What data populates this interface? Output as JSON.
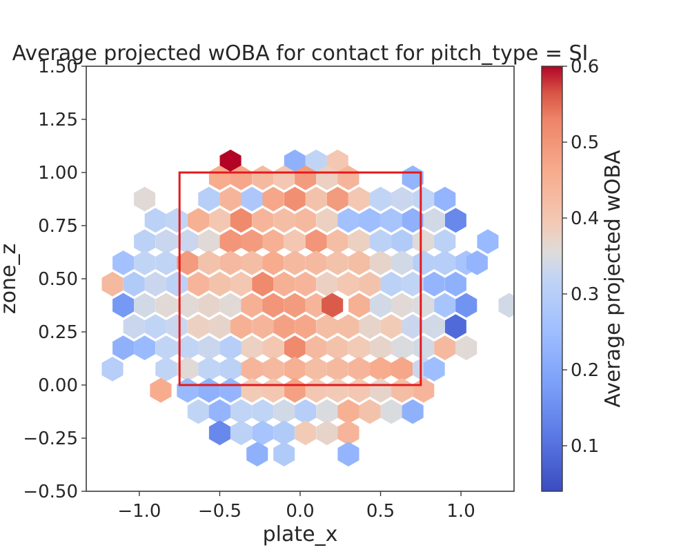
{
  "chart_data": {
    "type": "heatmap",
    "subtype": "hexbin",
    "title": "Average projected wOBA for contact for pitch_type = SI",
    "xlabel": "plate_x",
    "ylabel": "zone_z",
    "xlim": [
      -1.33,
      1.33
    ],
    "ylim": [
      -0.5,
      1.5
    ],
    "x_ticks": [
      -1.0,
      -0.5,
      0.0,
      0.5,
      1.0
    ],
    "x_tick_labels": [
      "−1.0",
      "−0.5",
      "0.0",
      "0.5",
      "1.0"
    ],
    "y_ticks": [
      -0.5,
      -0.25,
      0.0,
      0.25,
      0.5,
      0.75,
      1.0,
      1.25,
      1.5
    ],
    "y_tick_labels": [
      "−0.50",
      "−0.25",
      "0.00",
      "0.25",
      "0.50",
      "0.75",
      "1.00",
      "1.25",
      "1.50"
    ],
    "colorbar": {
      "label": "Average projected wOBA",
      "colormap": "coolwarm",
      "vmin": 0.04,
      "vmax": 0.6,
      "ticks": [
        0.1,
        0.2,
        0.3,
        0.4,
        0.5,
        0.6
      ],
      "tick_labels": [
        "0.1",
        "0.2",
        "0.3",
        "0.4",
        "0.5",
        "0.6"
      ]
    },
    "strike_zone": {
      "x": [
        -0.75,
        0.75
      ],
      "z": [
        0.0,
        1.0
      ],
      "color": "#e31a1c"
    },
    "hex_x_spacing": 0.1333,
    "hex_z_spacing": 0.25,
    "hexbins": [
      {
        "x": -0.433,
        "z": 1.05,
        "v": 0.6
      },
      {
        "x": -0.033,
        "z": 1.05,
        "v": 0.22
      },
      {
        "x": 0.1,
        "z": 1.05,
        "v": 0.32
      },
      {
        "x": 0.233,
        "z": 1.05,
        "v": 0.4
      },
      {
        "x": -0.5,
        "z": 0.975,
        "v": 0.46
      },
      {
        "x": -0.367,
        "z": 0.975,
        "v": 0.47
      },
      {
        "x": -0.233,
        "z": 0.975,
        "v": 0.43
      },
      {
        "x": -0.1,
        "z": 0.975,
        "v": 0.4
      },
      {
        "x": 0.033,
        "z": 0.975,
        "v": 0.49
      },
      {
        "x": 0.167,
        "z": 0.975,
        "v": 0.38
      },
      {
        "x": 0.3,
        "z": 0.975,
        "v": 0.44
      },
      {
        "x": 0.7,
        "z": 0.975,
        "v": 0.23
      },
      {
        "x": -0.967,
        "z": 0.875,
        "v": 0.36
      },
      {
        "x": -0.567,
        "z": 0.875,
        "v": 0.3
      },
      {
        "x": -0.433,
        "z": 0.875,
        "v": 0.44
      },
      {
        "x": -0.3,
        "z": 0.875,
        "v": 0.28
      },
      {
        "x": -0.167,
        "z": 0.875,
        "v": 0.47
      },
      {
        "x": -0.033,
        "z": 0.875,
        "v": 0.51
      },
      {
        "x": 0.1,
        "z": 0.875,
        "v": 0.41
      },
      {
        "x": 0.233,
        "z": 0.875,
        "v": 0.49
      },
      {
        "x": 0.367,
        "z": 0.875,
        "v": 0.4
      },
      {
        "x": 0.5,
        "z": 0.875,
        "v": 0.32
      },
      {
        "x": 0.633,
        "z": 0.875,
        "v": 0.33
      },
      {
        "x": 0.767,
        "z": 0.875,
        "v": 0.32
      },
      {
        "x": 0.9,
        "z": 0.875,
        "v": 0.23
      },
      {
        "x": -0.9,
        "z": 0.775,
        "v": 0.31
      },
      {
        "x": -0.767,
        "z": 0.775,
        "v": 0.32
      },
      {
        "x": -0.633,
        "z": 0.775,
        "v": 0.45
      },
      {
        "x": -0.5,
        "z": 0.775,
        "v": 0.4
      },
      {
        "x": -0.367,
        "z": 0.775,
        "v": 0.52
      },
      {
        "x": -0.233,
        "z": 0.775,
        "v": 0.44
      },
      {
        "x": -0.1,
        "z": 0.775,
        "v": 0.42
      },
      {
        "x": 0.033,
        "z": 0.775,
        "v": 0.43
      },
      {
        "x": 0.167,
        "z": 0.775,
        "v": 0.38
      },
      {
        "x": 0.3,
        "z": 0.775,
        "v": 0.26
      },
      {
        "x": 0.433,
        "z": 0.775,
        "v": 0.25
      },
      {
        "x": 0.567,
        "z": 0.775,
        "v": 0.27
      },
      {
        "x": 0.7,
        "z": 0.775,
        "v": 0.22
      },
      {
        "x": 0.833,
        "z": 0.775,
        "v": 0.34
      },
      {
        "x": 0.967,
        "z": 0.775,
        "v": 0.14
      },
      {
        "x": -0.967,
        "z": 0.675,
        "v": 0.31
      },
      {
        "x": -0.833,
        "z": 0.675,
        "v": 0.33
      },
      {
        "x": -0.7,
        "z": 0.675,
        "v": 0.33
      },
      {
        "x": -0.567,
        "z": 0.675,
        "v": 0.36
      },
      {
        "x": -0.433,
        "z": 0.675,
        "v": 0.5
      },
      {
        "x": -0.3,
        "z": 0.675,
        "v": 0.49
      },
      {
        "x": -0.167,
        "z": 0.675,
        "v": 0.45
      },
      {
        "x": -0.033,
        "z": 0.675,
        "v": 0.4
      },
      {
        "x": 0.1,
        "z": 0.675,
        "v": 0.5
      },
      {
        "x": 0.233,
        "z": 0.675,
        "v": 0.42
      },
      {
        "x": 0.367,
        "z": 0.675,
        "v": 0.38
      },
      {
        "x": 0.5,
        "z": 0.675,
        "v": 0.31
      },
      {
        "x": 0.633,
        "z": 0.675,
        "v": 0.29
      },
      {
        "x": 0.767,
        "z": 0.675,
        "v": 0.36
      },
      {
        "x": 0.9,
        "z": 0.675,
        "v": 0.31
      },
      {
        "x": 1.167,
        "z": 0.675,
        "v": 0.24
      },
      {
        "x": -1.1,
        "z": 0.575,
        "v": 0.26
      },
      {
        "x": -0.967,
        "z": 0.575,
        "v": 0.32
      },
      {
        "x": -0.833,
        "z": 0.575,
        "v": 0.32
      },
      {
        "x": -0.7,
        "z": 0.575,
        "v": 0.49
      },
      {
        "x": -0.567,
        "z": 0.575,
        "v": 0.41
      },
      {
        "x": -0.433,
        "z": 0.575,
        "v": 0.43
      },
      {
        "x": -0.3,
        "z": 0.575,
        "v": 0.42
      },
      {
        "x": -0.167,
        "z": 0.575,
        "v": 0.46
      },
      {
        "x": -0.033,
        "z": 0.575,
        "v": 0.43
      },
      {
        "x": 0.1,
        "z": 0.575,
        "v": 0.43
      },
      {
        "x": 0.233,
        "z": 0.575,
        "v": 0.41
      },
      {
        "x": 0.367,
        "z": 0.575,
        "v": 0.42
      },
      {
        "x": 0.5,
        "z": 0.575,
        "v": 0.37
      },
      {
        "x": 0.633,
        "z": 0.575,
        "v": 0.34
      },
      {
        "x": 0.767,
        "z": 0.575,
        "v": 0.3
      },
      {
        "x": 0.9,
        "z": 0.575,
        "v": 0.3
      },
      {
        "x": 1.033,
        "z": 0.575,
        "v": 0.27
      },
      {
        "x": 1.1,
        "z": 0.575,
        "v": 0.23
      },
      {
        "x": -1.167,
        "z": 0.475,
        "v": 0.43
      },
      {
        "x": -1.033,
        "z": 0.475,
        "v": 0.29
      },
      {
        "x": -0.9,
        "z": 0.475,
        "v": 0.33
      },
      {
        "x": -0.767,
        "z": 0.475,
        "v": 0.31
      },
      {
        "x": -0.633,
        "z": 0.475,
        "v": 0.44
      },
      {
        "x": -0.5,
        "z": 0.475,
        "v": 0.41
      },
      {
        "x": -0.367,
        "z": 0.475,
        "v": 0.4
      },
      {
        "x": -0.233,
        "z": 0.475,
        "v": 0.52
      },
      {
        "x": -0.1,
        "z": 0.475,
        "v": 0.45
      },
      {
        "x": 0.033,
        "z": 0.475,
        "v": 0.44
      },
      {
        "x": 0.167,
        "z": 0.475,
        "v": 0.38
      },
      {
        "x": 0.3,
        "z": 0.475,
        "v": 0.4
      },
      {
        "x": 0.433,
        "z": 0.475,
        "v": 0.41
      },
      {
        "x": 0.567,
        "z": 0.475,
        "v": 0.31
      },
      {
        "x": 0.7,
        "z": 0.475,
        "v": 0.32
      },
      {
        "x": 0.833,
        "z": 0.475,
        "v": 0.23
      },
      {
        "x": 0.967,
        "z": 0.475,
        "v": 0.22
      },
      {
        "x": -1.1,
        "z": 0.375,
        "v": 0.17
      },
      {
        "x": -0.967,
        "z": 0.375,
        "v": 0.34
      },
      {
        "x": -0.833,
        "z": 0.375,
        "v": 0.36
      },
      {
        "x": -0.7,
        "z": 0.375,
        "v": 0.36
      },
      {
        "x": -0.567,
        "z": 0.375,
        "v": 0.37
      },
      {
        "x": -0.433,
        "z": 0.375,
        "v": 0.36
      },
      {
        "x": -0.3,
        "z": 0.375,
        "v": 0.45
      },
      {
        "x": -0.167,
        "z": 0.375,
        "v": 0.5
      },
      {
        "x": -0.033,
        "z": 0.375,
        "v": 0.49
      },
      {
        "x": 0.1,
        "z": 0.375,
        "v": 0.44
      },
      {
        "x": 0.2,
        "z": 0.375,
        "v": 0.56
      },
      {
        "x": 0.367,
        "z": 0.375,
        "v": 0.45
      },
      {
        "x": 0.5,
        "z": 0.375,
        "v": 0.34
      },
      {
        "x": 0.633,
        "z": 0.375,
        "v": 0.36
      },
      {
        "x": 0.767,
        "z": 0.375,
        "v": 0.35
      },
      {
        "x": 0.9,
        "z": 0.375,
        "v": 0.27
      },
      {
        "x": 1.033,
        "z": 0.375,
        "v": 0.16
      },
      {
        "x": 1.3,
        "z": 0.375,
        "v": 0.34
      },
      {
        "x": -1.033,
        "z": 0.275,
        "v": 0.33
      },
      {
        "x": -0.9,
        "z": 0.275,
        "v": 0.32
      },
      {
        "x": -0.767,
        "z": 0.275,
        "v": 0.33
      },
      {
        "x": -0.633,
        "z": 0.275,
        "v": 0.38
      },
      {
        "x": -0.5,
        "z": 0.275,
        "v": 0.37
      },
      {
        "x": -0.367,
        "z": 0.275,
        "v": 0.45
      },
      {
        "x": -0.233,
        "z": 0.275,
        "v": 0.44
      },
      {
        "x": -0.1,
        "z": 0.275,
        "v": 0.48
      },
      {
        "x": 0.033,
        "z": 0.275,
        "v": 0.47
      },
      {
        "x": 0.167,
        "z": 0.275,
        "v": 0.42
      },
      {
        "x": 0.3,
        "z": 0.275,
        "v": 0.42
      },
      {
        "x": 0.433,
        "z": 0.275,
        "v": 0.37
      },
      {
        "x": 0.567,
        "z": 0.275,
        "v": 0.39
      },
      {
        "x": 0.7,
        "z": 0.275,
        "v": 0.33
      },
      {
        "x": 0.833,
        "z": 0.275,
        "v": 0.34
      },
      {
        "x": 0.967,
        "z": 0.275,
        "v": 0.09
      },
      {
        "x": -1.1,
        "z": 0.175,
        "v": 0.22
      },
      {
        "x": -0.967,
        "z": 0.175,
        "v": 0.24
      },
      {
        "x": -0.833,
        "z": 0.175,
        "v": 0.32
      },
      {
        "x": -0.7,
        "z": 0.175,
        "v": 0.32
      },
      {
        "x": -0.567,
        "z": 0.175,
        "v": 0.33
      },
      {
        "x": -0.433,
        "z": 0.175,
        "v": 0.3
      },
      {
        "x": -0.3,
        "z": 0.175,
        "v": 0.38
      },
      {
        "x": -0.167,
        "z": 0.175,
        "v": 0.4
      },
      {
        "x": -0.033,
        "z": 0.175,
        "v": 0.52
      },
      {
        "x": 0.1,
        "z": 0.175,
        "v": 0.43
      },
      {
        "x": 0.233,
        "z": 0.175,
        "v": 0.41
      },
      {
        "x": 0.367,
        "z": 0.175,
        "v": 0.39
      },
      {
        "x": 0.5,
        "z": 0.175,
        "v": 0.37
      },
      {
        "x": 0.633,
        "z": 0.175,
        "v": 0.35
      },
      {
        "x": 0.767,
        "z": 0.175,
        "v": 0.34
      },
      {
        "x": 0.9,
        "z": 0.175,
        "v": 0.43
      },
      {
        "x": 1.033,
        "z": 0.175,
        "v": 0.36
      },
      {
        "x": -1.167,
        "z": 0.075,
        "v": 0.3
      },
      {
        "x": -0.833,
        "z": 0.075,
        "v": 0.32
      },
      {
        "x": -0.7,
        "z": 0.075,
        "v": 0.36
      },
      {
        "x": -0.567,
        "z": 0.075,
        "v": 0.32
      },
      {
        "x": -0.433,
        "z": 0.075,
        "v": 0.31
      },
      {
        "x": -0.3,
        "z": 0.075,
        "v": 0.44
      },
      {
        "x": -0.167,
        "z": 0.075,
        "v": 0.43
      },
      {
        "x": -0.033,
        "z": 0.075,
        "v": 0.45
      },
      {
        "x": 0.1,
        "z": 0.075,
        "v": 0.42
      },
      {
        "x": 0.233,
        "z": 0.075,
        "v": 0.43
      },
      {
        "x": 0.367,
        "z": 0.075,
        "v": 0.44
      },
      {
        "x": 0.5,
        "z": 0.075,
        "v": 0.46
      },
      {
        "x": 0.633,
        "z": 0.075,
        "v": 0.47
      },
      {
        "x": 0.767,
        "z": 0.075,
        "v": 0.33
      },
      {
        "x": 0.833,
        "z": 0.075,
        "v": 0.25
      },
      {
        "x": -0.867,
        "z": -0.025,
        "v": 0.46
      },
      {
        "x": -0.7,
        "z": -0.025,
        "v": 0.24
      },
      {
        "x": -0.567,
        "z": -0.025,
        "v": 0.22
      },
      {
        "x": -0.433,
        "z": -0.025,
        "v": 0.23
      },
      {
        "x": -0.3,
        "z": -0.025,
        "v": 0.39
      },
      {
        "x": -0.167,
        "z": -0.025,
        "v": 0.4
      },
      {
        "x": -0.033,
        "z": -0.025,
        "v": 0.48
      },
      {
        "x": 0.1,
        "z": -0.025,
        "v": 0.4
      },
      {
        "x": 0.233,
        "z": -0.025,
        "v": 0.39
      },
      {
        "x": 0.367,
        "z": -0.025,
        "v": 0.4
      },
      {
        "x": 0.5,
        "z": -0.025,
        "v": 0.37
      },
      {
        "x": 0.633,
        "z": -0.025,
        "v": 0.42
      },
      {
        "x": 0.767,
        "z": -0.025,
        "v": 0.44
      },
      {
        "x": -0.633,
        "z": -0.125,
        "v": 0.32
      },
      {
        "x": -0.5,
        "z": -0.125,
        "v": 0.23
      },
      {
        "x": -0.367,
        "z": -0.125,
        "v": 0.32
      },
      {
        "x": -0.233,
        "z": -0.125,
        "v": 0.32
      },
      {
        "x": -0.1,
        "z": -0.125,
        "v": 0.34
      },
      {
        "x": 0.033,
        "z": -0.125,
        "v": 0.3
      },
      {
        "x": 0.167,
        "z": -0.125,
        "v": 0.35
      },
      {
        "x": 0.3,
        "z": -0.125,
        "v": 0.45
      },
      {
        "x": 0.433,
        "z": -0.125,
        "v": 0.41
      },
      {
        "x": 0.567,
        "z": -0.125,
        "v": 0.35
      },
      {
        "x": 0.7,
        "z": -0.125,
        "v": 0.22
      },
      {
        "x": -0.5,
        "z": -0.225,
        "v": 0.14
      },
      {
        "x": -0.367,
        "z": -0.225,
        "v": 0.31
      },
      {
        "x": -0.233,
        "z": -0.225,
        "v": 0.27
      },
      {
        "x": -0.1,
        "z": -0.225,
        "v": 0.29
      },
      {
        "x": 0.033,
        "z": -0.225,
        "v": 0.39
      },
      {
        "x": 0.167,
        "z": -0.225,
        "v": 0.37
      },
      {
        "x": 0.3,
        "z": -0.225,
        "v": 0.44
      },
      {
        "x": -0.267,
        "z": -0.325,
        "v": 0.22
      },
      {
        "x": -0.1,
        "z": -0.325,
        "v": 0.29
      },
      {
        "x": 0.3,
        "z": -0.325,
        "v": 0.23
      }
    ]
  }
}
